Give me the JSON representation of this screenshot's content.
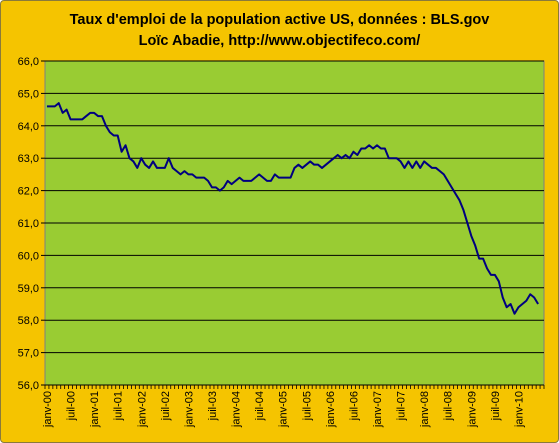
{
  "chart_data": {
    "type": "line",
    "title": "Taux d'emploi de la population active US, données : BLS.gov",
    "subtitle": "Loïc Abadie, http://www.objectifeco.com/",
    "xlabel": "",
    "ylabel": "",
    "ylim": [
      56.0,
      66.0
    ],
    "y_ticks": [
      "56,0",
      "57,0",
      "58,0",
      "59,0",
      "60,0",
      "61,0",
      "62,0",
      "63,0",
      "64,0",
      "65,0",
      "66,0"
    ],
    "x_ticks": [
      "janv-00",
      "juil-00",
      "janv-01",
      "juil-01",
      "janv-02",
      "juil-02",
      "janv-03",
      "juil-03",
      "janv-04",
      "juil-04",
      "janv-05",
      "juil-05",
      "janv-06",
      "juil-06",
      "janv-07",
      "juil-07",
      "janv-08",
      "juil-08",
      "janv-09",
      "juil-09",
      "janv-10"
    ],
    "grid": true,
    "legend": "none",
    "colors": {
      "plot_bg": "#99cc33",
      "frame_bg": "#f5c400",
      "line": "#000080",
      "grid": "#000000"
    },
    "series": [
      {
        "x_start": "janv-00",
        "frequency": "monthly",
        "values": [
          64.6,
          64.6,
          64.6,
          64.7,
          64.4,
          64.5,
          64.2,
          64.2,
          64.2,
          64.2,
          64.3,
          64.4,
          64.4,
          64.3,
          64.3,
          64.0,
          63.8,
          63.7,
          63.7,
          63.2,
          63.4,
          63.0,
          62.9,
          62.7,
          63.0,
          62.8,
          62.7,
          62.9,
          62.7,
          62.7,
          62.7,
          63.0,
          62.7,
          62.6,
          62.5,
          62.6,
          62.5,
          62.5,
          62.4,
          62.4,
          62.4,
          62.3,
          62.1,
          62.1,
          62.0,
          62.1,
          62.3,
          62.2,
          62.3,
          62.4,
          62.3,
          62.3,
          62.3,
          62.4,
          62.5,
          62.4,
          62.3,
          62.3,
          62.5,
          62.4,
          62.4,
          62.4,
          62.4,
          62.7,
          62.8,
          62.7,
          62.8,
          62.9,
          62.8,
          62.8,
          62.7,
          62.8,
          62.9,
          63.0,
          63.1,
          63.0,
          63.1,
          63.0,
          63.2,
          63.1,
          63.3,
          63.3,
          63.4,
          63.3,
          63.4,
          63.3,
          63.3,
          63.0,
          63.0,
          63.0,
          62.9,
          62.7,
          62.9,
          62.7,
          62.9,
          62.7,
          62.9,
          62.8,
          62.7,
          62.7,
          62.6,
          62.5,
          62.3,
          62.1,
          61.9,
          61.7,
          61.4,
          61.0,
          60.6,
          60.3,
          59.9,
          59.9,
          59.6,
          59.4,
          59.4,
          59.2,
          58.7,
          58.4,
          58.5,
          58.2,
          58.4,
          58.5,
          58.6,
          58.8,
          58.7,
          58.5
        ]
      }
    ]
  }
}
